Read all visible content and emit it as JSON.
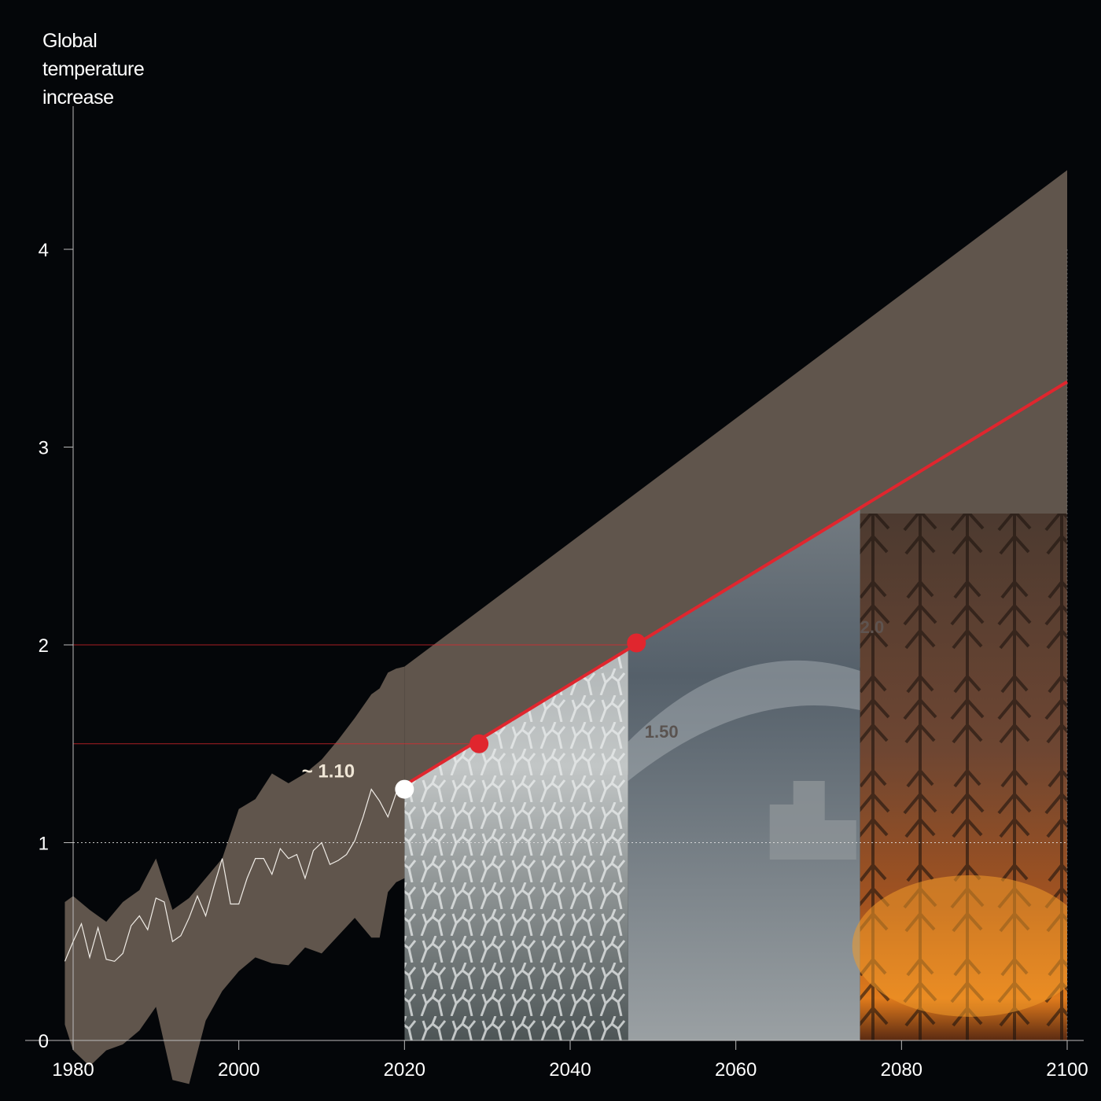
{
  "chart_data": {
    "type": "line",
    "ylabel_lines": [
      "Global",
      "temperature",
      "increase"
    ],
    "xlabel": "",
    "xlim": [
      1980,
      2100
    ],
    "ylim": [
      0,
      4.4
    ],
    "x_ticks": [
      1980,
      2000,
      2020,
      2040,
      2060,
      2080,
      2100
    ],
    "y_ticks": [
      0,
      1,
      2,
      3,
      4
    ],
    "grid": false,
    "reference_line": {
      "y": 1,
      "style": "dotted"
    },
    "threshold_lines": [
      1.5,
      2.0
    ],
    "observed": {
      "x": [
        1979,
        1980,
        1981,
        1982,
        1983,
        1984,
        1985,
        1986,
        1987,
        1988,
        1989,
        1990,
        1991,
        1992,
        1993,
        1994,
        1995,
        1996,
        1997,
        1998,
        1999,
        2000,
        2001,
        2002,
        2003,
        2004,
        2005,
        2006,
        2007,
        2008,
        2009,
        2010,
        2011,
        2012,
        2013,
        2014,
        2015,
        2016,
        2017,
        2018,
        2019
      ],
      "y": [
        0.4,
        0.5,
        0.59,
        0.42,
        0.57,
        0.41,
        0.4,
        0.44,
        0.58,
        0.63,
        0.56,
        0.72,
        0.7,
        0.5,
        0.53,
        0.62,
        0.73,
        0.63,
        0.78,
        0.92,
        0.69,
        0.69,
        0.82,
        0.92,
        0.92,
        0.84,
        0.97,
        0.92,
        0.94,
        0.82,
        0.96,
        1.0,
        0.89,
        0.91,
        0.94,
        1.01,
        1.13,
        1.27,
        1.21,
        1.13,
        1.25
      ]
    },
    "observed_range": {
      "x": [
        1979,
        1980,
        1982,
        1984,
        1986,
        1988,
        1990,
        1992,
        1994,
        1996,
        1998,
        2000,
        2002,
        2004,
        2006,
        2008,
        2010,
        2012,
        2014,
        2016,
        2017,
        2018,
        2019,
        2020
      ],
      "upper": [
        0.7,
        0.73,
        0.66,
        0.6,
        0.7,
        0.76,
        0.92,
        0.66,
        0.72,
        0.82,
        0.92,
        1.17,
        1.22,
        1.35,
        1.3,
        1.35,
        1.42,
        1.52,
        1.63,
        1.75,
        1.78,
        1.86,
        1.88,
        1.89
      ],
      "lower": [
        0.08,
        -0.05,
        -0.13,
        -0.05,
        -0.02,
        0.05,
        0.17,
        -0.2,
        -0.22,
        0.1,
        0.25,
        0.35,
        0.42,
        0.39,
        0.38,
        0.47,
        0.44,
        0.53,
        0.62,
        0.52,
        0.52,
        0.75,
        0.8,
        0.82
      ]
    },
    "projection_range": {
      "x": [
        2020,
        2100
      ],
      "upper": [
        1.89,
        4.4
      ],
      "lower": [
        0.82,
        2.37
      ]
    },
    "projection": {
      "x": [
        2020,
        2100
      ],
      "y": [
        1.29,
        3.33
      ],
      "color": "#e0262e"
    },
    "markers": [
      {
        "x": 2020,
        "y": 1.27,
        "color": "#ffffff"
      },
      {
        "x": 2029,
        "y": 1.5,
        "color": "#e0262e"
      },
      {
        "x": 2048,
        "y": 2.01,
        "color": "#e0262e"
      }
    ],
    "annotations": [
      {
        "text": "~ 1.10",
        "x": 2014,
        "y": 1.33,
        "color": "#efe6d6"
      },
      {
        "text": "1.50",
        "x": 2049,
        "y": 1.53,
        "color": "#5a5350"
      },
      {
        "text": "2.0",
        "x": 2075,
        "y": 2.06,
        "color": "#5f5450"
      }
    ],
    "image_panels": [
      {
        "icon": "coral-bleaching-image",
        "x": [
          2020,
          2047
        ]
      },
      {
        "icon": "flood-wave-image",
        "x": [
          2047,
          2075
        ]
      },
      {
        "icon": "wildfire-image",
        "x": [
          2075,
          2100
        ]
      }
    ],
    "colors": {
      "background": "#040609",
      "band": "#60554c",
      "line": "#e0262e",
      "axis": "#bbbbbb"
    }
  }
}
